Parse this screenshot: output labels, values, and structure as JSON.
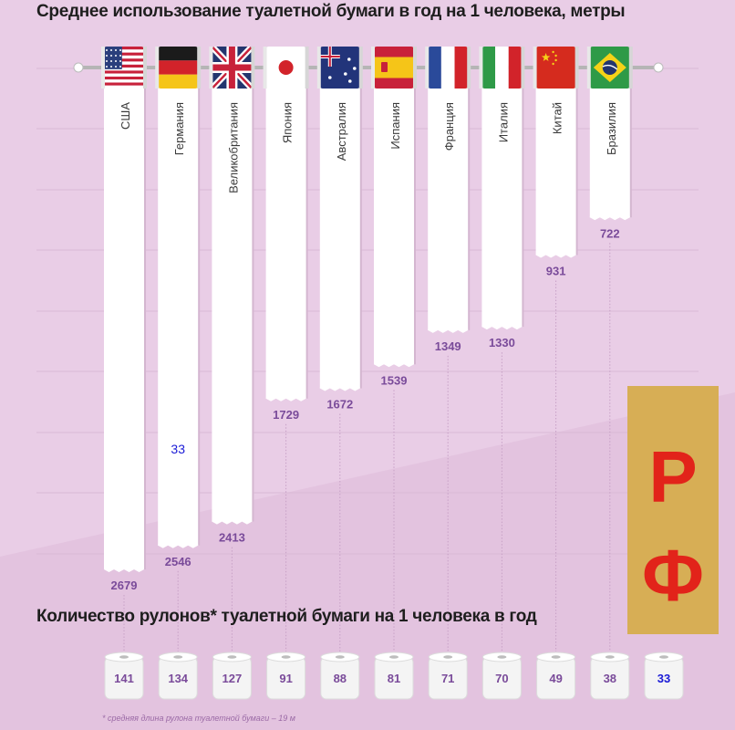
{
  "title": "Среднее использование туалетной бумаги в год на 1 человека, метры",
  "subtitle": "Количество рулонов* туалетной бумаги на 1 человека в год",
  "footnote": "* средняя длина рулона туалетной бумаги – 19 м",
  "overlay": {
    "badge_letters": [
      "Р",
      "Ф"
    ],
    "badge_color": "#d7ae55",
    "letter_color": "#e2231a",
    "inserted_values": [
      "33",
      "33"
    ],
    "inserted_color": "#1a1ad6"
  },
  "colors": {
    "background": "#e9cde6",
    "paper": "#ffffff",
    "value_text": "#7a4b9a",
    "label_text": "#3a3a3a"
  },
  "chart_data": [
    {
      "type": "bar",
      "title": "Среднее использование туалетной бумаги в год на 1 человека, метры",
      "categories": [
        "США",
        "Германия",
        "Великобритания",
        "Япония",
        "Австралия",
        "Испания",
        "Франция",
        "Италия",
        "Китай",
        "Бразилия"
      ],
      "values": [
        2679,
        2546,
        2413,
        1729,
        1672,
        1539,
        1349,
        1330,
        931,
        722
      ],
      "value_labels": [
        "2679",
        "2546",
        "2413",
        "1729",
        "1672",
        "1539",
        "1349",
        "1330",
        "931",
        "722"
      ],
      "flags": [
        "usa-flag",
        "germany-flag",
        "uk-flag",
        "japan-flag",
        "australia-flag",
        "spain-flag",
        "france-flag",
        "italy-flag",
        "china-flag",
        "brazil-flag"
      ],
      "ylim": [
        0,
        2679
      ]
    },
    {
      "type": "table",
      "title": "Количество рулонов* туалетной бумаги на 1 человека в год",
      "values": [
        141,
        134,
        127,
        91,
        88,
        81,
        71,
        70,
        49,
        38,
        33
      ],
      "value_labels": [
        "141",
        "134",
        "127",
        "91",
        "88",
        "81",
        "71",
        "70",
        "49",
        "38",
        "33"
      ]
    }
  ]
}
